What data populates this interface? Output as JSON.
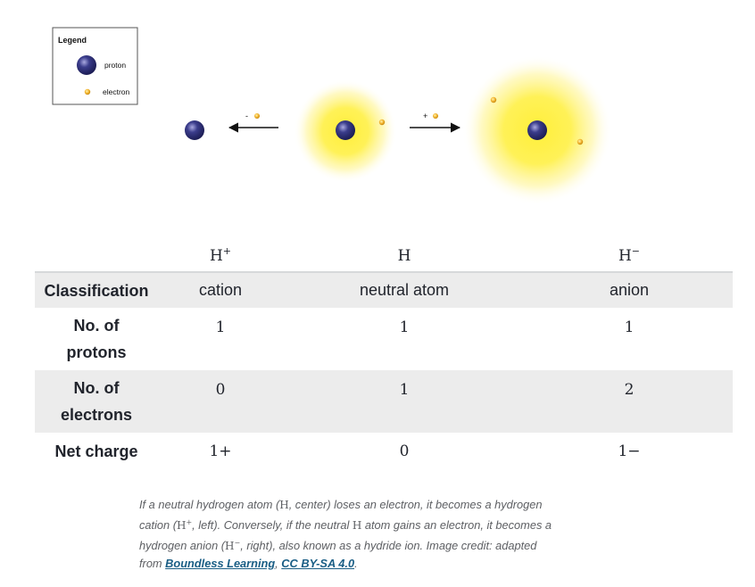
{
  "diagram": {
    "legend": {
      "title": "Legend",
      "proton_label": "proton",
      "electron_label": "electron"
    },
    "arrows": {
      "loss_sign": "-",
      "gain_sign": "+"
    },
    "colors": {
      "proton": "#3b3d8c",
      "electron": "#f5b935",
      "cloud": "#ffef3a"
    }
  },
  "table": {
    "headers": [
      {
        "base": "H",
        "sup": "+"
      },
      {
        "base": "H",
        "sup": ""
      },
      {
        "base": "H",
        "sup": "−"
      }
    ],
    "rows": [
      {
        "label": "Classification",
        "values": [
          "cation",
          "neutral atom",
          "anion"
        ]
      },
      {
        "label_lines": [
          "No. of",
          "protons"
        ],
        "values": [
          "1",
          "1",
          "1"
        ]
      },
      {
        "label_lines": [
          "No. of",
          "electrons"
        ],
        "values": [
          "0",
          "1",
          "2"
        ]
      },
      {
        "label": "Net charge",
        "values": [
          "1+",
          "0",
          "1−"
        ]
      }
    ]
  },
  "caption": {
    "p1": "If a neutral hydrogen atom (",
    "m1": "H",
    "p2": ", center) loses an electron, it becomes a hydrogen cation (",
    "m2_base": "H",
    "m2_sup": "+",
    "p3": ", left). Conversely, if the neutral ",
    "m3": "H",
    "p4": " atom gains an electron, it becomes a hydrogen anion (",
    "m4_base": "H",
    "m4_sup": "−",
    "p5": ", right), also known as a hydride ion. Image credit: adapted from ",
    "link1": "Boundless Learning",
    "p6": ", ",
    "link2": "CC BY-SA 4.0",
    "p7": "."
  }
}
